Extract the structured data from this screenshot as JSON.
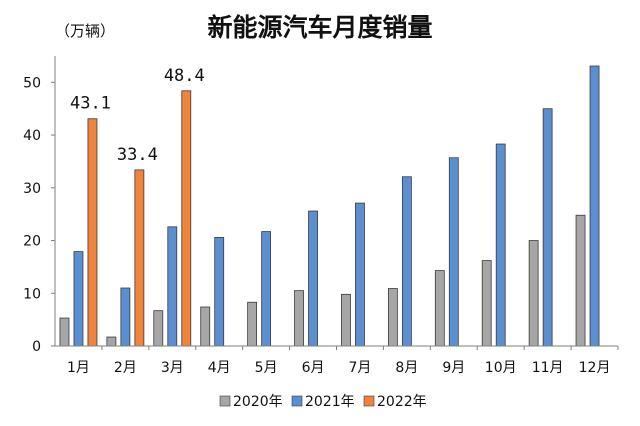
{
  "chart_data": {
    "type": "bar",
    "title": "新能源汽车月度销量",
    "unit_label": "（万辆）",
    "categories": [
      "1月",
      "2月",
      "3月",
      "4月",
      "5月",
      "6月",
      "7月",
      "8月",
      "9月",
      "10月",
      "11月",
      "12月"
    ],
    "series": [
      {
        "name": "2020年",
        "color": "#a6a6a6",
        "values": [
          5.3,
          1.7,
          6.7,
          7.4,
          8.3,
          10.5,
          9.8,
          10.9,
          14.3,
          16.2,
          20.0,
          24.8
        ]
      },
      {
        "name": "2021年",
        "color": "#5b8fd0",
        "values": [
          17.9,
          11.0,
          22.6,
          20.6,
          21.7,
          25.6,
          27.1,
          32.1,
          35.7,
          38.3,
          45.0,
          53.1
        ]
      },
      {
        "name": "2022年",
        "color": "#f0843c",
        "values": [
          43.1,
          33.4,
          48.4,
          null,
          null,
          null,
          null,
          null,
          null,
          null,
          null,
          null
        ]
      }
    ],
    "data_labels": [
      {
        "series": "2022年",
        "category": "1月",
        "text": "43.1"
      },
      {
        "series": "2022年",
        "category": "2月",
        "text": "33.4"
      },
      {
        "series": "2022年",
        "category": "3月",
        "text": "48.4"
      }
    ],
    "yticks": [
      "0",
      "10",
      "20",
      "30",
      "40",
      "50"
    ],
    "ylim": [
      0,
      55
    ],
    "legend_position": "bottom",
    "grid": false
  }
}
